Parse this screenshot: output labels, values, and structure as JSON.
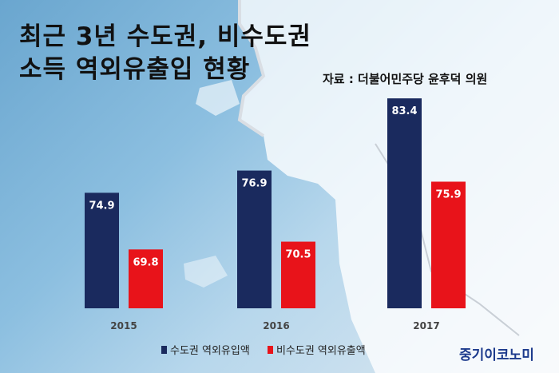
{
  "title_line1": "최근 3년 수도권, 비수도권",
  "title_line2": "소득 역외유출입 현황",
  "source": "자료 : 더불어민주당 윤후덕 의원",
  "brand": "중기이코노미",
  "colors": {
    "capital": "#1a2a5e",
    "noncapital": "#e8131a"
  },
  "chart_data": {
    "type": "bar",
    "categories": [
      "2015",
      "2016",
      "2017"
    ],
    "series": [
      {
        "name": "수도권 역외유입액",
        "values": [
          74.9,
          76.9,
          83.4
        ]
      },
      {
        "name": "비수도권 역외유출액",
        "values": [
          69.8,
          70.5,
          75.9
        ]
      }
    ],
    "ylim": [
      64.5,
      86
    ],
    "legend_position": "bottom",
    "grid": false
  }
}
